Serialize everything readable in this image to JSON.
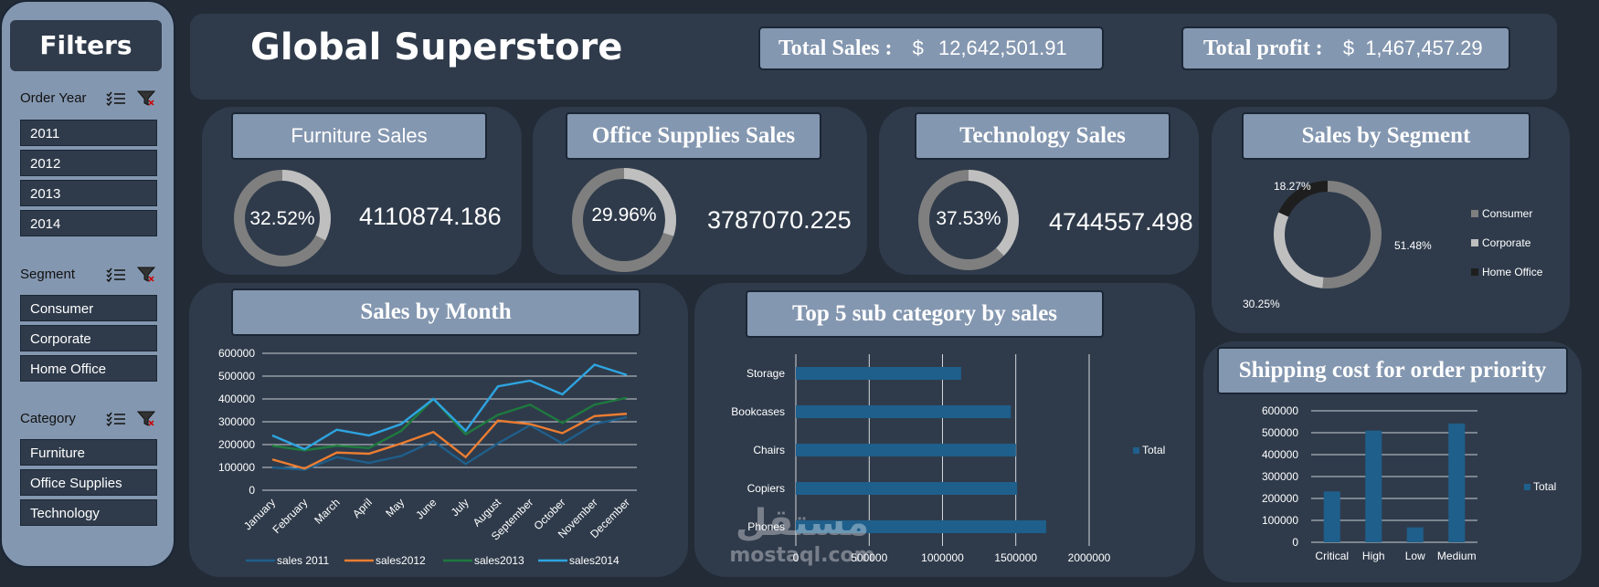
{
  "sidebar": {
    "title": "Filters",
    "slicers": [
      {
        "name": "Order Year",
        "items": [
          "2011",
          "2012",
          "2013",
          "2014"
        ]
      },
      {
        "name": "Segment",
        "items": [
          "Consumer",
          "Corporate",
          "Home Office"
        ]
      },
      {
        "name": "Category",
        "items": [
          "Furniture",
          "Office Supplies",
          "Technology"
        ]
      }
    ]
  },
  "header": {
    "title": "Global Superstore",
    "total_sales_label": "Total Sales :",
    "total_sales_currency": "$",
    "total_sales_value": "12,642,501.91",
    "total_profit_label": "Total profit :",
    "total_profit_currency": "$",
    "total_profit_value": "1,467,457.29"
  },
  "kpis": [
    {
      "title": "Furniture Sales",
      "percent": "32.52%",
      "fraction": 0.3252,
      "value": "4110874.186"
    },
    {
      "title": "Office Supplies Sales",
      "percent": "29.96%",
      "fraction": 0.2996,
      "value": "3787070.225"
    },
    {
      "title": "Technology Sales",
      "percent": "37.53%",
      "fraction": 0.3753,
      "value": "4744557.498"
    }
  ],
  "colors": {
    "background": "#222b36",
    "panel": "#2f3b4b",
    "title_box": "#8497b0",
    "donut_fill": "#bfbfbf",
    "donut_track": "#7f7f7f",
    "bar": "#1f5f8b",
    "line_2011": "#1f5f8b",
    "line_2012": "#ed7d31",
    "line_2013": "#1e7a3e",
    "line_2014": "#2ea4e0"
  },
  "chart_data": [
    {
      "type": "pie",
      "title": "Sales by Segment",
      "categories": [
        "Consumer",
        "Corporate",
        "Home Office"
      ],
      "values": [
        51.48,
        30.25,
        18.27
      ],
      "labels": [
        "51.48%",
        "30.25%",
        "18.27%"
      ],
      "colors": [
        "#7f7f7f",
        "#bfbfbf",
        "#1e1e1e"
      ],
      "legend": "right"
    },
    {
      "type": "line",
      "title": "Sales by Month",
      "categories": [
        "January",
        "February",
        "March",
        "April",
        "May",
        "June",
        "July",
        "August",
        "September",
        "October",
        "November",
        "December"
      ],
      "series": [
        {
          "name": "sales 2011",
          "values": [
            100000,
            90000,
            145000,
            120000,
            150000,
            215000,
            115000,
            205000,
            285000,
            205000,
            290000,
            320000
          ]
        },
        {
          "name": "sales2012",
          "values": [
            135000,
            95000,
            165000,
            160000,
            205000,
            255000,
            145000,
            305000,
            290000,
            250000,
            325000,
            335000
          ]
        },
        {
          "name": "sales2013",
          "values": [
            195000,
            175000,
            195000,
            185000,
            260000,
            400000,
            245000,
            330000,
            375000,
            295000,
            375000,
            405000
          ]
        },
        {
          "name": "sales2014",
          "values": [
            240000,
            180000,
            265000,
            240000,
            290000,
            400000,
            260000,
            455000,
            480000,
            420000,
            550000,
            505000
          ]
        }
      ],
      "yticks": [
        "0",
        "100000",
        "200000",
        "300000",
        "400000",
        "500000",
        "600000"
      ],
      "ylim": [
        0,
        600000
      ],
      "grid": true,
      "legend": "bottom"
    },
    {
      "type": "bar",
      "orientation": "horizontal",
      "title": "Top 5 sub category by sales",
      "categories": [
        "Storage",
        "Bookcases",
        "Chairs",
        "Copiers",
        "Phones"
      ],
      "series": [
        {
          "name": "Total",
          "values": [
            1127000,
            1466000,
            1501000,
            1509000,
            1707000
          ]
        }
      ],
      "xticks": [
        "0",
        "500000",
        "1000000",
        "1500000",
        "2000000"
      ],
      "xlim": [
        0,
        2000000
      ],
      "grid": true,
      "legend": "right"
    },
    {
      "type": "bar",
      "title": "Shipping cost for order priority",
      "categories": [
        "Critical",
        "High",
        "Low",
        "Medium"
      ],
      "series": [
        {
          "name": "Total",
          "values": [
            232000,
            510000,
            68000,
            542000
          ]
        }
      ],
      "yticks": [
        "0",
        "100000",
        "200000",
        "300000",
        "400000",
        "500000",
        "600000"
      ],
      "ylim": [
        0,
        600000
      ],
      "grid": true,
      "legend": "right"
    }
  ],
  "watermark": {
    "brand": "مستقل",
    "site": "mostaql.com"
  }
}
